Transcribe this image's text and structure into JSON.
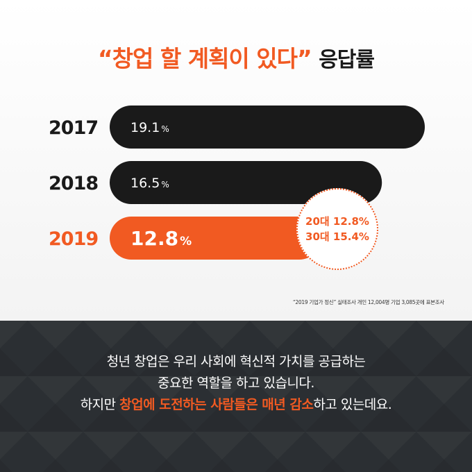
{
  "title": {
    "highlight": "“창업 할 계획이 있다”",
    "rest": "응답률"
  },
  "colors": {
    "accent": "#f15a22",
    "bar_default": "#1a1a1a",
    "label_default": "#1a1a1a",
    "value_text": "#ffffff"
  },
  "chart_data": {
    "type": "bar",
    "orientation": "horizontal",
    "categories": [
      "2017",
      "2018",
      "2019"
    ],
    "values": [
      19.1,
      16.5,
      12.8
    ],
    "value_labels": [
      "19.1",
      "16.5",
      "12.8"
    ],
    "unit": "%",
    "highlight_category": "2019",
    "xlim": [
      0,
      19.1
    ],
    "grid": false,
    "legend": "none"
  },
  "callout": {
    "line1": "20대 12.8%",
    "line2": "30대 15.4%"
  },
  "source": "“2019 기업가 정신” 실태조사 개인 12,004명 기업 3,085곳에 표본조사",
  "footer": {
    "line1": "청년 창업은 우리 사회에 혁신적 가치를 공급하는",
    "line2": "중요한 역할을 하고 있습니다.",
    "line3_pre": "하지만 ",
    "line3_hl1": "창업에 도전하는 사람들은 매년 감소",
    "line3_post": "하고 있는데요."
  }
}
